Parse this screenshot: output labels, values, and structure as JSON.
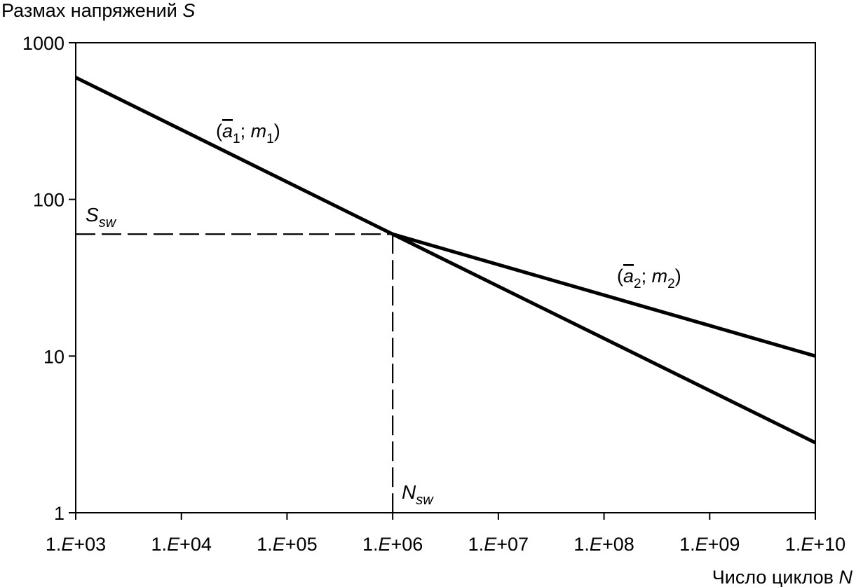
{
  "chart_data": {
    "type": "line",
    "ylabel_prefix": "Размах напряжений ",
    "ylabel_var": "S",
    "xlabel_prefix": "Число циклов ",
    "xlabel_var": "N",
    "x_scale": "log",
    "y_scale": "log",
    "xlim": [
      1000,
      10000000000
    ],
    "ylim": [
      1,
      1000
    ],
    "x_ticks": [
      {
        "value": 1000,
        "label": "1.E+03"
      },
      {
        "value": 10000,
        "label": "1.E+04"
      },
      {
        "value": 100000,
        "label": "1.E+05"
      },
      {
        "value": 1000000,
        "label": "1.E+06"
      },
      {
        "value": 10000000,
        "label": "1.E+07"
      },
      {
        "value": 100000000,
        "label": "1.E+08"
      },
      {
        "value": 1000000000,
        "label": "1.E+09"
      },
      {
        "value": 10000000000,
        "label": "1.E+10"
      }
    ],
    "y_ticks": [
      {
        "value": 1,
        "label": "1"
      },
      {
        "value": 10,
        "label": "10"
      },
      {
        "value": 100,
        "label": "100"
      },
      {
        "value": 1000,
        "label": "1000"
      }
    ],
    "grid": false,
    "series": [
      {
        "name": "(ā1; m1)",
        "label_base": "a",
        "label_sub_a": "1",
        "label_sub_m": "1",
        "x": [
          1000,
          1000000,
          10000000000
        ],
        "y": [
          600,
          60,
          2.8
        ]
      },
      {
        "name": "(ā2; m2)",
        "label_base": "a",
        "label_sub_a": "2",
        "label_sub_m": "2",
        "x": [
          1000000,
          10000000000
        ],
        "y": [
          60,
          10
        ]
      }
    ],
    "reference": {
      "S_sw": {
        "value": 60,
        "label": "S",
        "sub": "sw"
      },
      "N_sw": {
        "value": 1000000,
        "label": "N",
        "sub": "sw"
      }
    }
  }
}
